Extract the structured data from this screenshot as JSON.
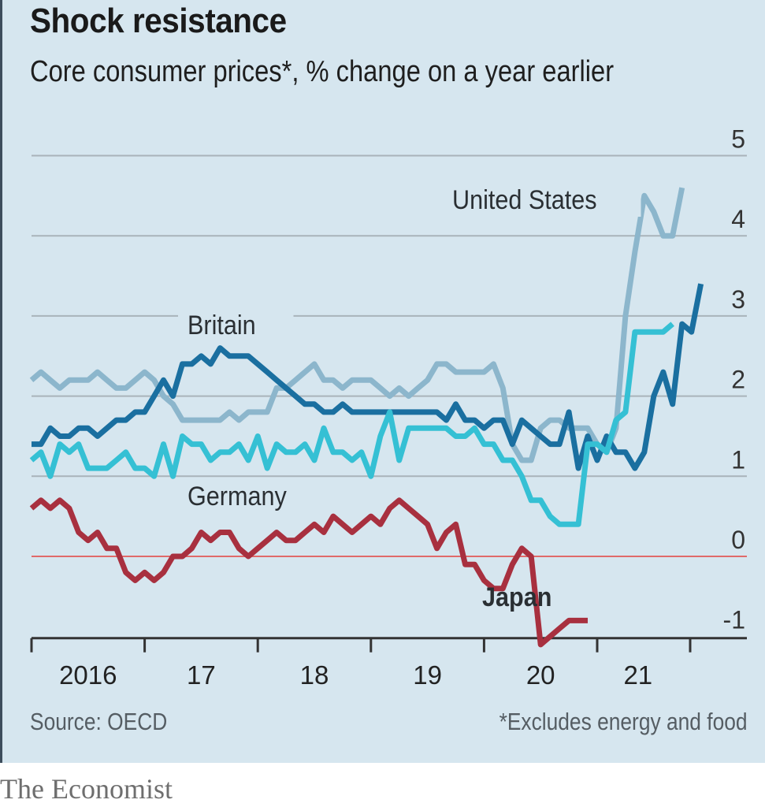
{
  "header": {
    "title": "Shock resistance",
    "subtitle": "Core consumer prices*, % change on a year earlier"
  },
  "footer": {
    "source": "Source: OECD",
    "footnote": "*Excludes energy and food",
    "brand": "The Economist"
  },
  "colors": {
    "background": "#d6e6ef",
    "united_states": "#8cb6cc",
    "britain": "#1a6fa0",
    "germany": "#35c0d4",
    "japan": "#a8303f",
    "zero_line": "#e06a6a",
    "grid": "#a9b3ba",
    "axis": "#333333"
  },
  "chart_data": {
    "type": "line",
    "title": "Shock resistance",
    "subtitle": "Core consumer prices*, % change on a year earlier",
    "xlabel": "",
    "ylabel": "% change on a year earlier",
    "x_start": "2016-01",
    "x_frequency": "monthly",
    "x_ticks": [
      "2016",
      "17",
      "18",
      "19",
      "20",
      "21"
    ],
    "xlim": [
      "2016-01",
      "2021-12"
    ],
    "ylim": [
      -1.1,
      5
    ],
    "y_ticks": [
      "5",
      "4",
      "3",
      "2",
      "1",
      "0",
      "-1"
    ],
    "y_tick_values": [
      5,
      4,
      3,
      2,
      1,
      0,
      -1
    ],
    "grid": true,
    "y_axis_side": "right",
    "legend": "inline-labels",
    "series": [
      {
        "name": "United States",
        "label": "United States",
        "color": "#8cb6cc",
        "values": [
          2.2,
          2.3,
          2.2,
          2.1,
          2.2,
          2.2,
          2.2,
          2.3,
          2.2,
          2.1,
          2.1,
          2.2,
          2.3,
          2.2,
          2.0,
          1.9,
          1.7,
          1.7,
          1.7,
          1.7,
          1.7,
          1.8,
          1.7,
          1.8,
          1.8,
          1.8,
          2.1,
          2.1,
          2.2,
          2.3,
          2.4,
          2.2,
          2.2,
          2.1,
          2.2,
          2.2,
          2.2,
          2.1,
          2.0,
          2.1,
          2.0,
          2.1,
          2.2,
          2.4,
          2.4,
          2.3,
          2.3,
          2.3,
          2.3,
          2.4,
          2.1,
          1.4,
          1.2,
          1.2,
          1.6,
          1.7,
          1.7,
          1.6,
          1.6,
          1.6,
          1.4,
          1.3,
          1.6,
          3.0,
          3.8,
          4.5,
          4.3,
          4.0,
          4.0,
          4.6
        ]
      },
      {
        "name": "Britain",
        "label": "Britain",
        "color": "#1a6fa0",
        "values": [
          1.4,
          1.4,
          1.6,
          1.5,
          1.5,
          1.6,
          1.6,
          1.5,
          1.6,
          1.7,
          1.7,
          1.8,
          1.8,
          2.0,
          2.2,
          2.0,
          2.4,
          2.4,
          2.5,
          2.4,
          2.6,
          2.5,
          2.5,
          2.5,
          2.4,
          2.3,
          2.2,
          2.1,
          2.0,
          1.9,
          1.9,
          1.8,
          1.8,
          1.9,
          1.8,
          1.8,
          1.8,
          1.8,
          1.8,
          1.8,
          1.8,
          1.8,
          1.8,
          1.8,
          1.7,
          1.9,
          1.7,
          1.7,
          1.6,
          1.7,
          1.7,
          1.4,
          1.7,
          1.6,
          1.5,
          1.4,
          1.4,
          1.8,
          1.1,
          1.5,
          1.2,
          1.5,
          1.3,
          1.3,
          1.1,
          1.3,
          2.0,
          2.3,
          1.9,
          2.9,
          2.8,
          3.4
        ]
      },
      {
        "name": "Germany",
        "label": "Germany",
        "color": "#35c0d4",
        "values": [
          1.2,
          1.3,
          1.0,
          1.4,
          1.3,
          1.4,
          1.1,
          1.1,
          1.1,
          1.2,
          1.3,
          1.1,
          1.1,
          1.0,
          1.4,
          1.0,
          1.5,
          1.4,
          1.4,
          1.2,
          1.3,
          1.3,
          1.4,
          1.2,
          1.5,
          1.1,
          1.4,
          1.3,
          1.3,
          1.4,
          1.2,
          1.6,
          1.3,
          1.3,
          1.2,
          1.3,
          1.0,
          1.5,
          1.8,
          1.2,
          1.6,
          1.6,
          1.6,
          1.6,
          1.6,
          1.5,
          1.5,
          1.6,
          1.4,
          1.4,
          1.2,
          1.2,
          1.0,
          0.7,
          0.7,
          0.5,
          0.4,
          0.4,
          0.4,
          1.4,
          1.4,
          1.3,
          1.7,
          1.8,
          2.8,
          2.8,
          2.8,
          2.8,
          2.9
        ]
      },
      {
        "name": "Japan",
        "label": "Japan",
        "color": "#a8303f",
        "values": [
          0.6,
          0.7,
          0.6,
          0.7,
          0.6,
          0.3,
          0.2,
          0.3,
          0.1,
          0.1,
          -0.2,
          -0.3,
          -0.2,
          -0.3,
          -0.2,
          0.0,
          0.0,
          0.1,
          0.3,
          0.2,
          0.3,
          0.3,
          0.1,
          0.0,
          0.1,
          0.2,
          0.3,
          0.2,
          0.2,
          0.3,
          0.4,
          0.3,
          0.5,
          0.4,
          0.3,
          0.4,
          0.5,
          0.4,
          0.6,
          0.7,
          0.6,
          0.5,
          0.4,
          0.1,
          0.3,
          0.4,
          -0.1,
          -0.1,
          -0.3,
          -0.4,
          -0.4,
          -0.1,
          0.1,
          0.0,
          -1.1,
          -1.0,
          -0.9,
          -0.8,
          -0.8,
          -0.8
        ]
      }
    ],
    "series_x_offsets_months": {
      "United States": 0,
      "Britain": 0,
      "Germany": 0,
      "Japan": 0
    },
    "annotations": [
      {
        "text": "United States",
        "series": "United States"
      },
      {
        "text": "Britain",
        "series": "Britain"
      },
      {
        "text": "Germany",
        "series": "Germany"
      },
      {
        "text": "Japan",
        "series": "Japan",
        "bold": true
      }
    ]
  }
}
